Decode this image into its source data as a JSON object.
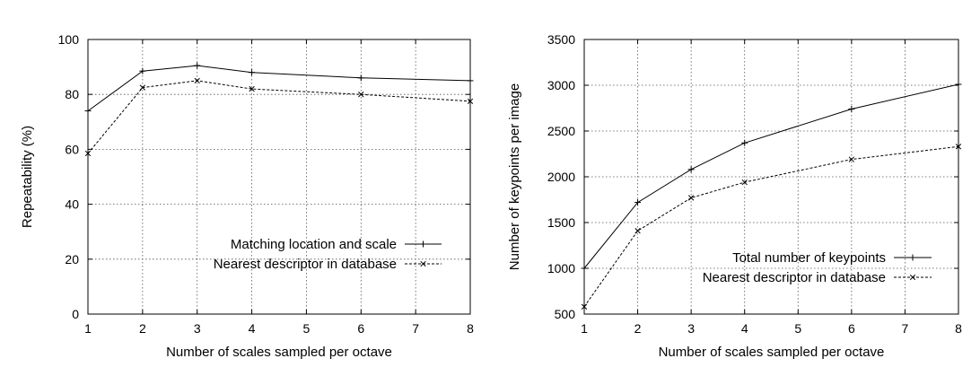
{
  "chart_data": [
    {
      "type": "line",
      "title": "",
      "xlabel": "Number of scales sampled per octave",
      "ylabel": "Repeatability (%)",
      "x": [
        1,
        2,
        3,
        4,
        6,
        8
      ],
      "xlim": [
        1,
        8
      ],
      "ylim": [
        0,
        100
      ],
      "xticks": [
        1,
        2,
        3,
        4,
        5,
        6,
        7,
        8
      ],
      "yticks": [
        0,
        20,
        40,
        60,
        80,
        100
      ],
      "grid": true,
      "legend_position": "bottom-right",
      "series": [
        {
          "name": "Matching location and scale",
          "values": [
            74,
            88.5,
            90.5,
            88,
            86,
            85
          ],
          "style": "solid",
          "marker": "plus"
        },
        {
          "name": "Nearest descriptor in database",
          "values": [
            58.5,
            82.5,
            85,
            82,
            80,
            77.5
          ],
          "style": "dashed",
          "marker": "cross"
        }
      ]
    },
    {
      "type": "line",
      "title": "",
      "xlabel": "Number of scales sampled per octave",
      "ylabel": "Number of keypoints per image",
      "x": [
        1,
        2,
        3,
        4,
        6,
        8
      ],
      "xlim": [
        1,
        8
      ],
      "ylim": [
        500,
        3500
      ],
      "xticks": [
        1,
        2,
        3,
        4,
        5,
        6,
        7,
        8
      ],
      "yticks": [
        500,
        1000,
        1500,
        2000,
        2500,
        3000,
        3500
      ],
      "grid": true,
      "legend_position": "bottom-right",
      "series": [
        {
          "name": "Total number of keypoints",
          "values": [
            1000,
            1720,
            2080,
            2370,
            2740,
            3010
          ],
          "style": "solid",
          "marker": "plus"
        },
        {
          "name": "Nearest descriptor in database",
          "values": [
            580,
            1410,
            1770,
            1940,
            2190,
            2330
          ],
          "style": "dashed",
          "marker": "cross"
        }
      ]
    }
  ],
  "colors": {
    "line": "#000000",
    "grid": "#555555",
    "background": "#ffffff"
  }
}
